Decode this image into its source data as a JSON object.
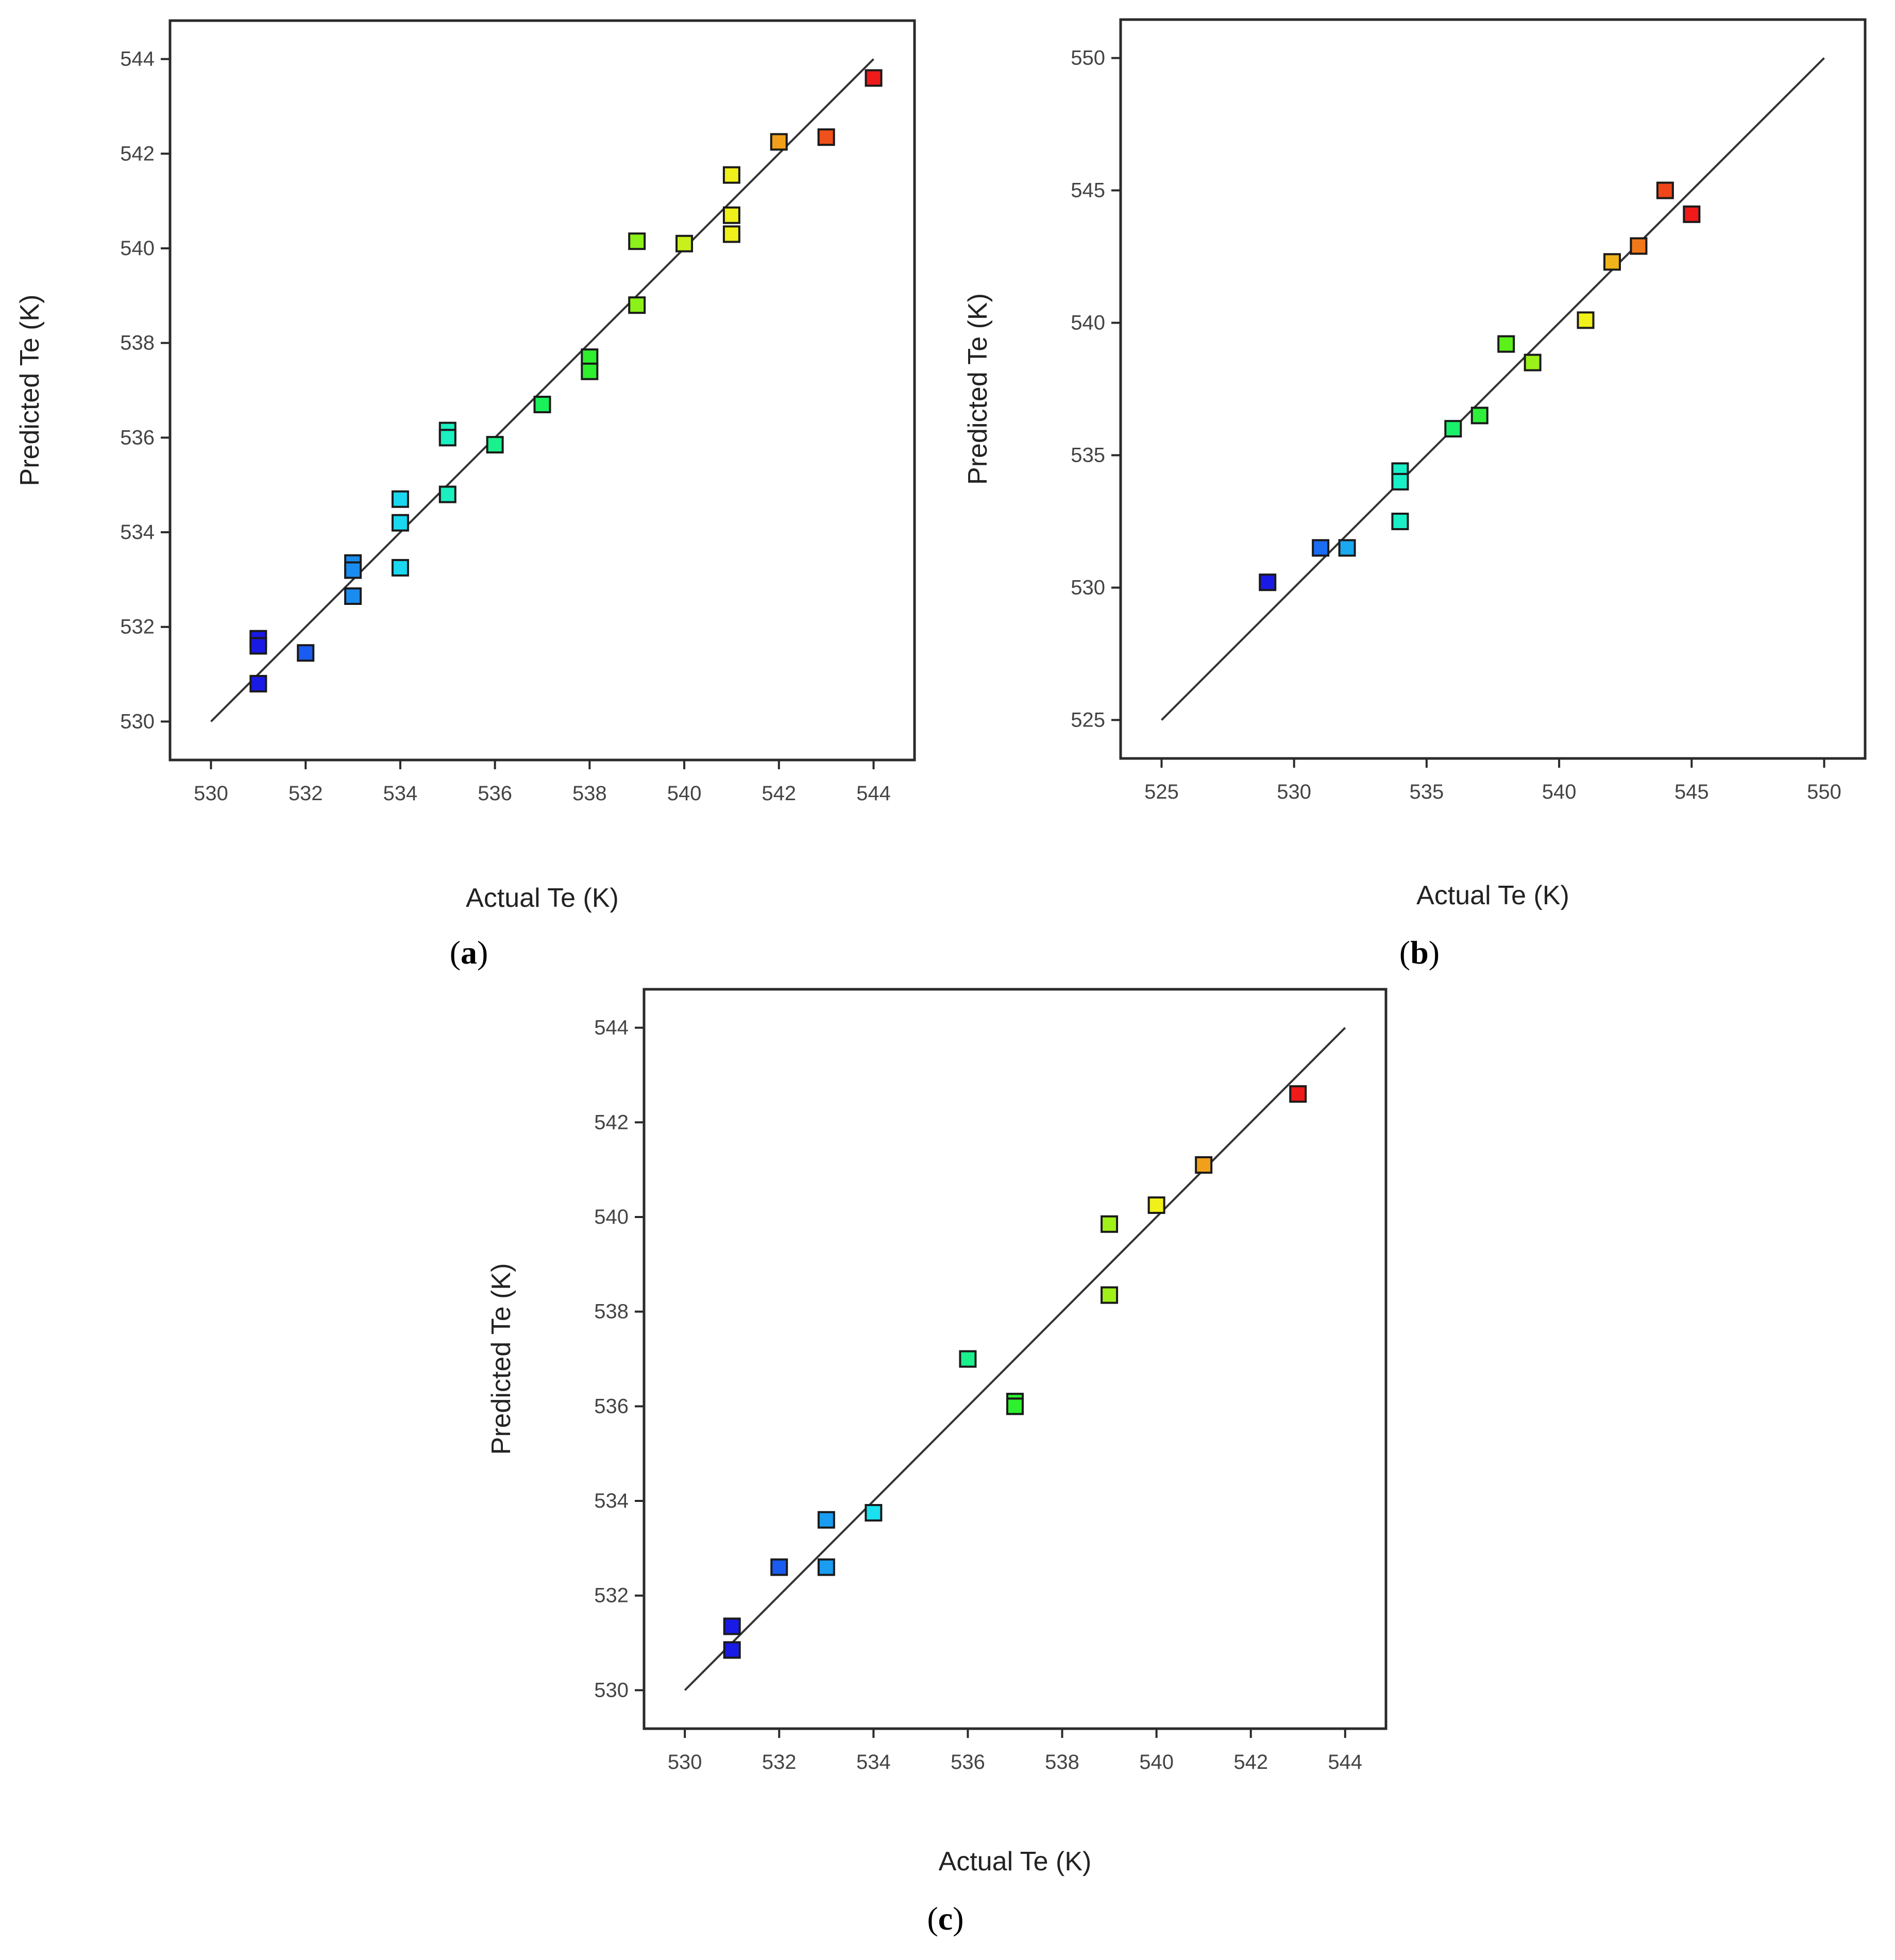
{
  "chart_data": [
    {
      "type": "scatter",
      "panel": "a",
      "caption_letter": "a",
      "xlabel": "Actual Te (K)",
      "ylabel": "Predicted Te (K)",
      "xlim": [
        530,
        544
      ],
      "ylim": [
        530,
        544
      ],
      "xticks": [
        530,
        532,
        534,
        536,
        538,
        540,
        542,
        544
      ],
      "yticks": [
        530,
        532,
        534,
        536,
        538,
        540,
        542,
        544
      ],
      "diagonal": [
        530,
        544
      ],
      "points": [
        {
          "x": 531,
          "y": 531.75,
          "color": "#1a1ae6"
        },
        {
          "x": 531,
          "y": 531.6,
          "color": "#1a1ae6"
        },
        {
          "x": 531,
          "y": 530.8,
          "color": "#1a1ae6"
        },
        {
          "x": 532,
          "y": 531.45,
          "color": "#1a5cf0"
        },
        {
          "x": 533,
          "y": 533.35,
          "color": "#1a8cf0"
        },
        {
          "x": 533,
          "y": 533.2,
          "color": "#1a8cf0"
        },
        {
          "x": 533,
          "y": 532.65,
          "color": "#1a8cf0"
        },
        {
          "x": 534,
          "y": 534.7,
          "color": "#1ad8f0"
        },
        {
          "x": 534,
          "y": 534.2,
          "color": "#1ad8f0"
        },
        {
          "x": 534,
          "y": 533.25,
          "color": "#1ad8f0"
        },
        {
          "x": 535,
          "y": 536.15,
          "color": "#1af0c0"
        },
        {
          "x": 535,
          "y": 536.0,
          "color": "#1af0c0"
        },
        {
          "x": 535,
          "y": 534.8,
          "color": "#1af0c0"
        },
        {
          "x": 536,
          "y": 535.85,
          "color": "#1af08c"
        },
        {
          "x": 537,
          "y": 536.7,
          "color": "#1af05a"
        },
        {
          "x": 538,
          "y": 537.7,
          "color": "#2ef02e"
        },
        {
          "x": 538,
          "y": 537.4,
          "color": "#2ef02e"
        },
        {
          "x": 539,
          "y": 540.15,
          "color": "#8cf01a"
        },
        {
          "x": 539,
          "y": 538.8,
          "color": "#8cf01a"
        },
        {
          "x": 540,
          "y": 540.1,
          "color": "#c8f01a"
        },
        {
          "x": 541,
          "y": 541.55,
          "color": "#f0f01a"
        },
        {
          "x": 541,
          "y": 540.7,
          "color": "#f0f01a"
        },
        {
          "x": 541,
          "y": 540.3,
          "color": "#f0f01a"
        },
        {
          "x": 542,
          "y": 542.25,
          "color": "#f0a01a"
        },
        {
          "x": 543,
          "y": 542.35,
          "color": "#f0501a"
        },
        {
          "x": 544,
          "y": 543.6,
          "color": "#f01a1a"
        }
      ]
    },
    {
      "type": "scatter",
      "panel": "b",
      "caption_letter": "b",
      "xlabel": "Actual Te (K)",
      "ylabel": "Predicted Te (K)",
      "xlim": [
        525,
        550
      ],
      "ylim": [
        525,
        550
      ],
      "xticks": [
        525,
        530,
        535,
        540,
        545,
        550
      ],
      "yticks": [
        525,
        530,
        535,
        540,
        545,
        550
      ],
      "diagonal": [
        525,
        550
      ],
      "points": [
        {
          "x": 529,
          "y": 530.2,
          "color": "#1a1ae6"
        },
        {
          "x": 531,
          "y": 531.5,
          "color": "#1a6cf0"
        },
        {
          "x": 532,
          "y": 531.5,
          "color": "#1aa8f0"
        },
        {
          "x": 534,
          "y": 534.4,
          "color": "#1af0c8"
        },
        {
          "x": 534,
          "y": 534.0,
          "color": "#1af0c8"
        },
        {
          "x": 534,
          "y": 532.5,
          "color": "#1af0c8"
        },
        {
          "x": 536,
          "y": 536.0,
          "color": "#1af06a"
        },
        {
          "x": 537,
          "y": 536.5,
          "color": "#2ef03a"
        },
        {
          "x": 538,
          "y": 539.2,
          "color": "#5cf01a"
        },
        {
          "x": 539,
          "y": 538.5,
          "color": "#9cf01a"
        },
        {
          "x": 541,
          "y": 540.1,
          "color": "#f0f01a"
        },
        {
          "x": 542,
          "y": 542.3,
          "color": "#f0b41a"
        },
        {
          "x": 543,
          "y": 542.9,
          "color": "#f0781a"
        },
        {
          "x": 544,
          "y": 545.0,
          "color": "#f0461a"
        },
        {
          "x": 545,
          "y": 544.1,
          "color": "#f01a1a"
        }
      ]
    },
    {
      "type": "scatter",
      "panel": "c",
      "caption_letter": "c",
      "xlabel": "Actual Te (K)",
      "ylabel": "Predicted Te (K)",
      "xlim": [
        530,
        544
      ],
      "ylim": [
        530,
        544
      ],
      "xticks": [
        530,
        532,
        534,
        536,
        538,
        540,
        542,
        544
      ],
      "yticks": [
        530,
        532,
        534,
        536,
        538,
        540,
        542,
        544
      ],
      "diagonal": [
        530,
        544
      ],
      "points": [
        {
          "x": 531,
          "y": 531.35,
          "color": "#1a1ae6"
        },
        {
          "x": 531,
          "y": 530.85,
          "color": "#1a1ae6"
        },
        {
          "x": 532,
          "y": 532.6,
          "color": "#1a5cf0"
        },
        {
          "x": 533,
          "y": 533.6,
          "color": "#1a9cf0"
        },
        {
          "x": 533,
          "y": 532.6,
          "color": "#1a9cf0"
        },
        {
          "x": 534,
          "y": 533.75,
          "color": "#1ae0f0"
        },
        {
          "x": 536,
          "y": 537.0,
          "color": "#1af08c"
        },
        {
          "x": 537,
          "y": 536.1,
          "color": "#2ef02e"
        },
        {
          "x": 537,
          "y": 536.0,
          "color": "#2ef02e"
        },
        {
          "x": 539,
          "y": 539.85,
          "color": "#a0f01a"
        },
        {
          "x": 539,
          "y": 538.35,
          "color": "#a0f01a"
        },
        {
          "x": 540,
          "y": 540.25,
          "color": "#f0f01a"
        },
        {
          "x": 541,
          "y": 541.1,
          "color": "#f0a01a"
        },
        {
          "x": 543,
          "y": 542.6,
          "color": "#f01a1a"
        }
      ]
    }
  ]
}
